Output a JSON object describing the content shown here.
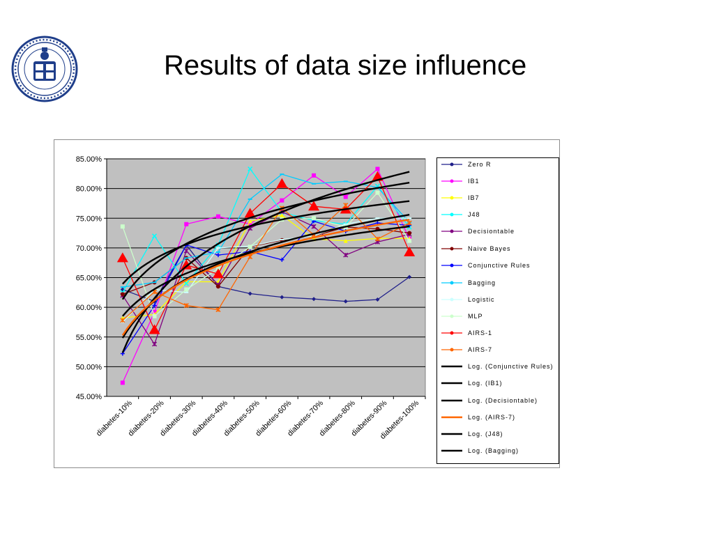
{
  "slide": {
    "title": "Results of data size influence"
  },
  "chart_data": {
    "type": "line",
    "title": "",
    "xlabel": "",
    "ylabel": "",
    "ylim": [
      45,
      85
    ],
    "y_ticks": [
      "45.00%",
      "50.00%",
      "55.00%",
      "60.00%",
      "65.00%",
      "70.00%",
      "75.00%",
      "80.00%",
      "85.00%"
    ],
    "y_tick_values": [
      45,
      50,
      55,
      60,
      65,
      70,
      75,
      80,
      85
    ],
    "grid": true,
    "legend_position": "right",
    "categories": [
      "diabetes-10%",
      "diabetes-20%",
      "diabetes-30%",
      "diabetes-40%",
      "diabetes-50%",
      "diabetes-60%",
      "diabetes-70%",
      "diabetes-80%",
      "diabetes-90%",
      "diabetes-100%"
    ],
    "series": [
      {
        "name": "ZeroR",
        "color": "#1f1f8a",
        "marker": "diamond",
        "values": [
          63.0,
          61.0,
          70.5,
          63.5,
          62.3,
          61.7,
          61.4,
          61.0,
          61.3,
          65.1
        ]
      },
      {
        "name": "IB1",
        "color": "#ff00ff",
        "marker": "square",
        "values": [
          47.3,
          59.2,
          74.0,
          75.3,
          74.0,
          78.0,
          82.2,
          78.6,
          83.3,
          71.5
        ]
      },
      {
        "name": "IB7",
        "color": "#ffff00",
        "marker": "triangle",
        "values": [
          58.2,
          58.8,
          64.3,
          64.3,
          74.5,
          75.5,
          71.5,
          71.2,
          71.6,
          71.6
        ]
      },
      {
        "name": "J48",
        "color": "#00ffff",
        "marker": "x",
        "values": [
          62.5,
          72.0,
          64.0,
          70.5,
          83.3,
          76.0,
          74.6,
          74.0,
          80.4,
          73.5
        ]
      },
      {
        "name": "Decisiontable",
        "color": "#800080",
        "marker": "star",
        "values": [
          62.0,
          53.8,
          69.5,
          63.8,
          73.3,
          76.1,
          73.6,
          68.8,
          71.0,
          72.3
        ]
      },
      {
        "name": "Naive Bayes",
        "color": "#800000",
        "marker": "circle",
        "values": [
          62.2,
          64.2,
          68.3,
          63.5,
          70.2,
          71.3,
          72.0,
          73.5,
          73.2,
          72.5
        ]
      },
      {
        "name": "Conjunctive Rules",
        "color": "#0000ff",
        "marker": "plus",
        "values": [
          52.2,
          60.3,
          70.5,
          68.8,
          69.4,
          68.0,
          74.5,
          72.8,
          74.2,
          73.8
        ]
      },
      {
        "name": "Bagging",
        "color": "#00ccff",
        "marker": "dash",
        "values": [
          63.4,
          64.2,
          68.3,
          69.3,
          78.2,
          82.4,
          80.8,
          81.2,
          80.2,
          74.3
        ]
      },
      {
        "name": "Logistic",
        "color": "#ccffff",
        "marker": "dash",
        "values": [
          57.5,
          63.0,
          62.5,
          70.0,
          70.3,
          71.4,
          72.0,
          74.0,
          75.0,
          75.0
        ]
      },
      {
        "name": "MLP",
        "color": "#ccffcc",
        "marker": "square",
        "values": [
          73.6,
          58.5,
          63.0,
          66.5,
          70.2,
          74.8,
          75.0,
          73.5,
          79.3,
          71.2
        ]
      },
      {
        "name": "AIRS-1",
        "color": "#ff0000",
        "marker": "big-triangle",
        "values": [
          68.3,
          56.2,
          67.1,
          65.6,
          75.8,
          80.8,
          77.0,
          76.5,
          82.0,
          69.3
        ]
      },
      {
        "name": "AIRS-7",
        "color": "#ff6600",
        "marker": "star",
        "values": [
          57.8,
          62.6,
          60.3,
          59.6,
          68.5,
          76.7,
          72.2,
          77.2,
          71.5,
          74.2
        ]
      },
      {
        "name": "Log. (Conjunctive Rules)",
        "color": "#000000",
        "trend_of": "Conjunctive Rules"
      },
      {
        "name": "Log. (IB1)",
        "color": "#000000",
        "trend_of": "IB1"
      },
      {
        "name": "Log. (Decisiontable)",
        "color": "#000000",
        "trend_of": "Decisiontable"
      },
      {
        "name": "Log. (AIRS-7)",
        "color": "#ff6600",
        "trend_of": "AIRS-7"
      },
      {
        "name": "Log. (J48)",
        "color": "#000000",
        "trend_of": "J48"
      },
      {
        "name": "Log. (Bagging)",
        "color": "#000000",
        "trend_of": "Bagging"
      }
    ],
    "legend_labels": [
      "Zero R",
      "IB1",
      "IB7",
      "J48",
      "Decisiontable",
      "Naive Bayes",
      "Conjunctive Rules",
      "Bagging",
      "Logistic",
      "MLP",
      "AIRS-1",
      "AIRS-7",
      "Log. (Conjunctive Rules)",
      "Log. (IB1)",
      "Log. (Decisiontable)",
      "Log. (AIRS-7)",
      "Log. (J48)",
      "Log. (Bagging)"
    ],
    "plot_background": "#c0c0c0"
  },
  "logo": {
    "icon": "university-seal-icon",
    "color": "#1f3e8a",
    "text": "ACADEMIA LUGDUNO BATAVA"
  }
}
